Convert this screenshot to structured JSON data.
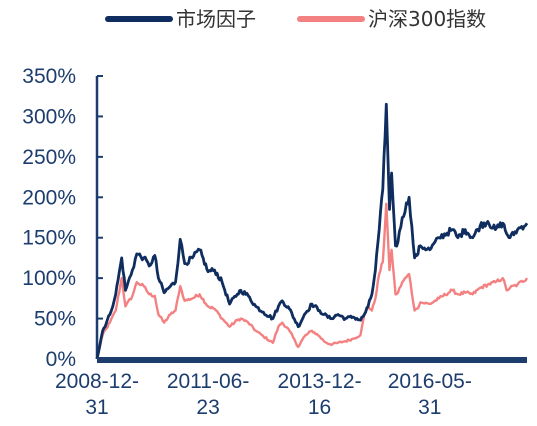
{
  "chart_data": {
    "type": "line",
    "title": "",
    "xlabel": "",
    "ylabel": "",
    "ylim": [
      0,
      350
    ],
    "y_tick_values": [
      0,
      50,
      100,
      150,
      200,
      250,
      300,
      350
    ],
    "y_tick_labels": [
      "0%",
      "50%",
      "100%",
      "150%",
      "200%",
      "250%",
      "300%",
      "350%"
    ],
    "x_range": [
      "2008-12-31",
      "2018-07-31"
    ],
    "x_ticks": [
      {
        "date": "2008-12-31",
        "line1": "2008-12-",
        "line2": "31"
      },
      {
        "date": "2011-06-23",
        "line1": "2011-06-",
        "line2": "23"
      },
      {
        "date": "2013-12-16",
        "line1": "2013-12-",
        "line2": "16"
      },
      {
        "date": "2016-05-31",
        "line1": "2016-05-",
        "line2": "31"
      }
    ],
    "grid": false,
    "legend_position": "top",
    "series": [
      {
        "name": "市场因子",
        "color": "#0f2d5e",
        "points": [
          [
            "2008-12-31",
            0
          ],
          [
            "2009-02-15",
            35
          ],
          [
            "2009-04-15",
            55
          ],
          [
            "2009-06-01",
            80
          ],
          [
            "2009-07-20",
            125
          ],
          [
            "2009-08-20",
            85
          ],
          [
            "2009-10-15",
            110
          ],
          [
            "2009-11-20",
            130
          ],
          [
            "2010-01-15",
            125
          ],
          [
            "2010-03-01",
            115
          ],
          [
            "2010-04-15",
            128
          ],
          [
            "2010-05-15",
            100
          ],
          [
            "2010-06-30",
            82
          ],
          [
            "2010-08-20",
            90
          ],
          [
            "2010-10-01",
            95
          ],
          [
            "2010-11-08",
            148
          ],
          [
            "2010-12-15",
            118
          ],
          [
            "2011-02-15",
            125
          ],
          [
            "2011-04-15",
            135
          ],
          [
            "2011-06-23",
            108
          ],
          [
            "2011-08-15",
            110
          ],
          [
            "2011-10-15",
            95
          ],
          [
            "2011-12-15",
            68
          ],
          [
            "2012-02-15",
            80
          ],
          [
            "2012-03-15",
            85
          ],
          [
            "2012-05-15",
            78
          ],
          [
            "2012-07-15",
            65
          ],
          [
            "2012-09-15",
            58
          ],
          [
            "2012-12-01",
            50
          ],
          [
            "2013-01-15",
            65
          ],
          [
            "2013-02-15",
            72
          ],
          [
            "2013-04-15",
            62
          ],
          [
            "2013-06-25",
            40
          ],
          [
            "2013-08-15",
            55
          ],
          [
            "2013-10-15",
            68
          ],
          [
            "2013-12-16",
            60
          ],
          [
            "2014-01-20",
            55
          ],
          [
            "2014-03-15",
            50
          ],
          [
            "2014-05-15",
            55
          ],
          [
            "2014-07-15",
            50
          ],
          [
            "2014-09-15",
            52
          ],
          [
            "2014-11-15",
            48
          ],
          [
            "2014-12-15",
            55
          ],
          [
            "2015-01-15",
            65
          ],
          [
            "2015-02-15",
            80
          ],
          [
            "2015-03-15",
            110
          ],
          [
            "2015-04-15",
            160
          ],
          [
            "2015-05-15",
            210
          ],
          [
            "2015-06-12",
            315
          ],
          [
            "2015-07-08",
            185
          ],
          [
            "2015-07-25",
            230
          ],
          [
            "2015-08-26",
            140
          ],
          [
            "2015-09-15",
            145
          ],
          [
            "2015-10-20",
            175
          ],
          [
            "2015-12-15",
            200
          ],
          [
            "2016-01-28",
            125
          ],
          [
            "2016-02-15",
            128
          ],
          [
            "2016-03-15",
            140
          ],
          [
            "2016-05-31",
            135
          ],
          [
            "2016-08-15",
            150
          ],
          [
            "2016-11-30",
            160
          ],
          [
            "2017-01-15",
            150
          ],
          [
            "2017-03-15",
            160
          ],
          [
            "2017-05-15",
            150
          ],
          [
            "2017-07-15",
            165
          ],
          [
            "2017-09-15",
            170
          ],
          [
            "2017-11-15",
            160
          ],
          [
            "2018-01-15",
            168
          ],
          [
            "2018-02-15",
            155
          ],
          [
            "2018-03-15",
            150
          ],
          [
            "2018-05-15",
            160
          ],
          [
            "2018-07-31",
            168
          ]
        ]
      },
      {
        "name": "沪深300指数",
        "color": "#f48181",
        "points": [
          [
            "2008-12-31",
            0
          ],
          [
            "2009-02-15",
            30
          ],
          [
            "2009-04-15",
            45
          ],
          [
            "2009-06-01",
            60
          ],
          [
            "2009-07-20",
            100
          ],
          [
            "2009-08-20",
            65
          ],
          [
            "2009-10-15",
            78
          ],
          [
            "2009-11-20",
            95
          ],
          [
            "2010-01-15",
            90
          ],
          [
            "2010-03-01",
            80
          ],
          [
            "2010-04-15",
            78
          ],
          [
            "2010-05-15",
            55
          ],
          [
            "2010-06-30",
            45
          ],
          [
            "2010-08-20",
            55
          ],
          [
            "2010-10-01",
            60
          ],
          [
            "2010-11-08",
            90
          ],
          [
            "2010-12-15",
            72
          ],
          [
            "2011-02-15",
            75
          ],
          [
            "2011-04-15",
            80
          ],
          [
            "2011-06-23",
            65
          ],
          [
            "2011-08-15",
            62
          ],
          [
            "2011-10-15",
            50
          ],
          [
            "2011-12-15",
            40
          ],
          [
            "2012-02-15",
            48
          ],
          [
            "2012-03-15",
            50
          ],
          [
            "2012-05-15",
            45
          ],
          [
            "2012-07-15",
            35
          ],
          [
            "2012-09-15",
            28
          ],
          [
            "2012-12-01",
            20
          ],
          [
            "2013-01-15",
            40
          ],
          [
            "2013-02-15",
            45
          ],
          [
            "2013-04-15",
            35
          ],
          [
            "2013-06-25",
            15
          ],
          [
            "2013-08-15",
            28
          ],
          [
            "2013-10-15",
            35
          ],
          [
            "2013-12-16",
            28
          ],
          [
            "2014-01-20",
            22
          ],
          [
            "2014-03-15",
            18
          ],
          [
            "2014-05-15",
            20
          ],
          [
            "2014-07-15",
            22
          ],
          [
            "2014-09-15",
            25
          ],
          [
            "2014-11-15",
            30
          ],
          [
            "2014-12-15",
            55
          ],
          [
            "2015-01-15",
            65
          ],
          [
            "2015-02-15",
            60
          ],
          [
            "2015-03-15",
            75
          ],
          [
            "2015-04-15",
            105
          ],
          [
            "2015-05-15",
            120
          ],
          [
            "2015-06-12",
            192
          ],
          [
            "2015-07-08",
            110
          ],
          [
            "2015-07-25",
            135
          ],
          [
            "2015-08-26",
            80
          ],
          [
            "2015-09-15",
            82
          ],
          [
            "2015-10-20",
            95
          ],
          [
            "2015-12-15",
            105
          ],
          [
            "2016-01-28",
            60
          ],
          [
            "2016-02-15",
            62
          ],
          [
            "2016-03-15",
            70
          ],
          [
            "2016-05-31",
            68
          ],
          [
            "2016-08-15",
            75
          ],
          [
            "2016-11-30",
            85
          ],
          [
            "2017-01-15",
            80
          ],
          [
            "2017-03-15",
            82
          ],
          [
            "2017-05-15",
            80
          ],
          [
            "2017-07-15",
            88
          ],
          [
            "2017-09-15",
            92
          ],
          [
            "2017-11-15",
            95
          ],
          [
            "2018-01-15",
            100
          ],
          [
            "2018-02-15",
            85
          ],
          [
            "2018-03-15",
            88
          ],
          [
            "2018-05-15",
            92
          ],
          [
            "2018-07-31",
            100
          ]
        ]
      }
    ]
  }
}
